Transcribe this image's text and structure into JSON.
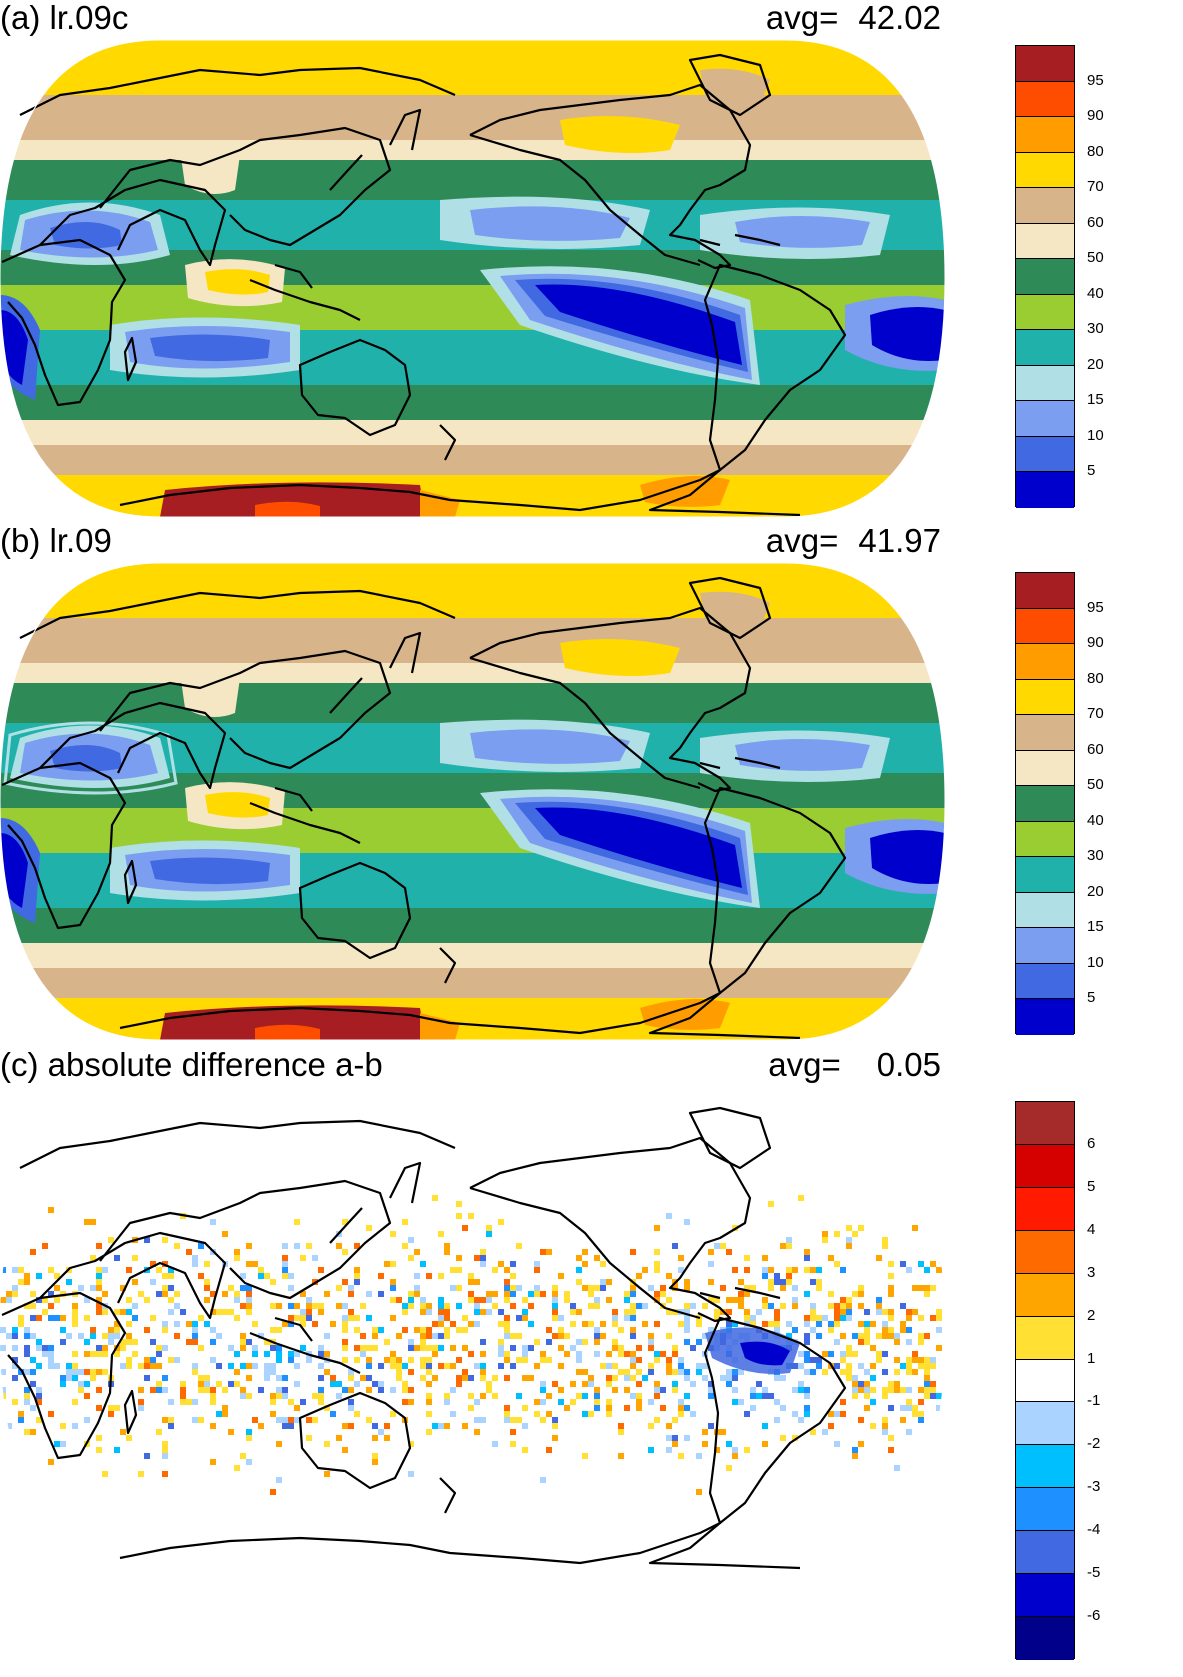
{
  "panels": [
    {
      "id": "a",
      "title": "(a) lr.09c",
      "avg_label": "avg=",
      "avg_value": "42.02",
      "colorbar": {
        "colors": [
          "#a61e22",
          "#ff4d00",
          "#ff9d00",
          "#ffd900",
          "#d8b48b",
          "#f5e6c4",
          "#2e8b57",
          "#9acd32",
          "#20b2aa",
          "#b0e0e6",
          "#7b9ef0",
          "#4169e1",
          "#0000cd"
        ],
        "ticks": [
          "95",
          "90",
          "80",
          "70",
          "60",
          "50",
          "40",
          "30",
          "20",
          "15",
          "10",
          "5"
        ]
      }
    },
    {
      "id": "b",
      "title": "(b) lr.09",
      "avg_label": "avg=",
      "avg_value": "41.97",
      "colorbar": {
        "colors": [
          "#a61e22",
          "#ff4d00",
          "#ff9d00",
          "#ffd900",
          "#d8b48b",
          "#f5e6c4",
          "#2e8b57",
          "#9acd32",
          "#20b2aa",
          "#b0e0e6",
          "#7b9ef0",
          "#4169e1",
          "#0000cd"
        ],
        "ticks": [
          "95",
          "90",
          "80",
          "70",
          "60",
          "50",
          "40",
          "30",
          "20",
          "15",
          "10",
          "5"
        ]
      }
    },
    {
      "id": "c",
      "title": "(c) absolute difference a-b",
      "avg_label": "avg=",
      "avg_value": "0.05",
      "colorbar": {
        "colors": [
          "#a52a2a",
          "#d50000",
          "#ff1a00",
          "#ff6a00",
          "#ffa500",
          "#ffe033",
          "#ffffff",
          "#aad4ff",
          "#00bfff",
          "#1e90ff",
          "#4169e1",
          "#0000cd",
          "#00008b"
        ],
        "ticks": [
          "6",
          "5",
          "4",
          "3",
          "2",
          "1",
          "-1",
          "-2",
          "-3",
          "-4",
          "-5",
          "-6"
        ]
      }
    }
  ]
}
